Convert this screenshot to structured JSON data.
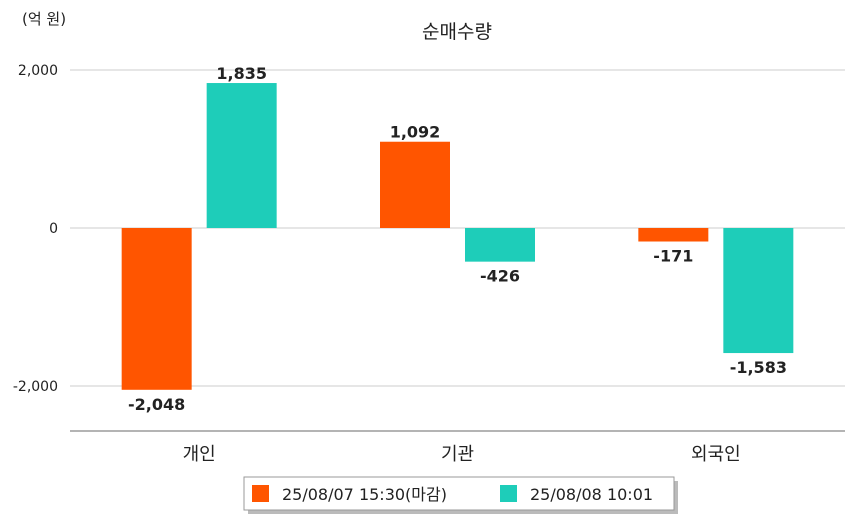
{
  "chart_data": {
    "type": "bar",
    "title": "순매수량",
    "unit_label": "(억 원)",
    "categories": [
      "개인",
      "기관",
      "외국인"
    ],
    "series": [
      {
        "name": "25/08/07 15:30(마감)",
        "color": "#ff5500",
        "values": [
          -2048,
          1092,
          -171
        ]
      },
      {
        "name": "25/08/08 10:01",
        "color": "#1ecdb9",
        "values": [
          1835,
          -426,
          -1583
        ]
      }
    ],
    "value_labels": [
      [
        "-2,048",
        "1,092",
        "-171"
      ],
      [
        "1,835",
        "-426",
        "-1,583"
      ]
    ],
    "yticks": [
      2000,
      0,
      -2000
    ],
    "ytick_labels": [
      "2,000",
      "0",
      "-2,000"
    ],
    "ylim": [
      -2600,
      2200
    ],
    "grid": true,
    "legend_position": "bottom-center"
  }
}
